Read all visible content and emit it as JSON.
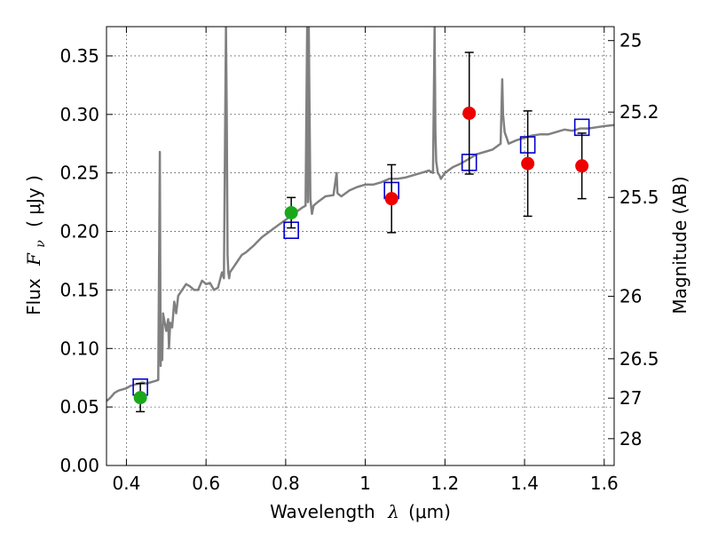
{
  "chart_data": {
    "type": "scatter",
    "title": "",
    "xlabel": {
      "text": "Wavelength",
      "symbol": "λ",
      "unit": "(μm)"
    },
    "ylabel": {
      "text": "Flux",
      "symbol": "F",
      "subscript": "ν",
      "unit": "( μJy )"
    },
    "y2label": "Magnitude (AB)",
    "xlim": [
      0.35,
      1.625
    ],
    "ylim": [
      0.0,
      0.375
    ],
    "grid": true,
    "colors": {
      "spectrum": "#808080",
      "green_points": "#1aa81a",
      "red_points": "#ee0000",
      "model_squares": "#0000cc",
      "error_bars": "#000000"
    },
    "x_ticks": [
      {
        "value": 0.4,
        "label": "0.4"
      },
      {
        "value": 0.6,
        "label": "0.6"
      },
      {
        "value": 0.8,
        "label": "0.8"
      },
      {
        "value": 1.0,
        "label": "1"
      },
      {
        "value": 1.2,
        "label": "1.2"
      },
      {
        "value": 1.4,
        "label": "1.4"
      },
      {
        "value": 1.6,
        "label": "1.6"
      }
    ],
    "y_ticks": [
      {
        "value": 0.0,
        "label": "0.00"
      },
      {
        "value": 0.05,
        "label": "0.05"
      },
      {
        "value": 0.1,
        "label": "0.10"
      },
      {
        "value": 0.15,
        "label": "0.15"
      },
      {
        "value": 0.2,
        "label": "0.20"
      },
      {
        "value": 0.25,
        "label": "0.25"
      },
      {
        "value": 0.3,
        "label": "0.30"
      },
      {
        "value": 0.35,
        "label": "0.35"
      }
    ],
    "y2_ticks": [
      {
        "value": 25,
        "label": "25"
      },
      {
        "value": 25.2,
        "label": "25.2"
      },
      {
        "value": 25.5,
        "label": "25.5"
      },
      {
        "value": 26,
        "label": "26"
      },
      {
        "value": 26.5,
        "label": "26.5"
      },
      {
        "value": 27,
        "label": "27"
      },
      {
        "value": 28,
        "label": "28"
      }
    ],
    "series": [
      {
        "kind": "points",
        "color": "green",
        "points": [
          {
            "x": 0.435,
            "y": 0.058,
            "yerr": 0.012
          },
          {
            "x": 0.814,
            "y": 0.216,
            "yerr": 0.013
          }
        ]
      },
      {
        "kind": "points",
        "color": "red",
        "points": [
          {
            "x": 1.066,
            "y": 0.228,
            "yerr": 0.029
          },
          {
            "x": 1.261,
            "y": 0.301,
            "yerr": 0.052
          },
          {
            "x": 1.408,
            "y": 0.258,
            "yerr": 0.045
          },
          {
            "x": 1.544,
            "y": 0.256,
            "yerr": 0.028
          }
        ]
      },
      {
        "kind": "squares",
        "color": "blue",
        "points": [
          {
            "x": 0.435,
            "y": 0.067
          },
          {
            "x": 0.814,
            "y": 0.201
          },
          {
            "x": 1.066,
            "y": 0.235
          },
          {
            "x": 1.261,
            "y": 0.259
          },
          {
            "x": 1.408,
            "y": 0.274
          },
          {
            "x": 1.544,
            "y": 0.289
          }
        ]
      },
      {
        "kind": "spectrum",
        "x": [
          0.35,
          0.36,
          0.37,
          0.38,
          0.39,
          0.4,
          0.41,
          0.42,
          0.43,
          0.44,
          0.45,
          0.46,
          0.47,
          0.48,
          0.484,
          0.486,
          0.488,
          0.49,
          0.492,
          0.5,
          0.505,
          0.507,
          0.51,
          0.515,
          0.52,
          0.525,
          0.53,
          0.54,
          0.55,
          0.56,
          0.57,
          0.58,
          0.59,
          0.6,
          0.61,
          0.62,
          0.63,
          0.64,
          0.645,
          0.65,
          0.652,
          0.654,
          0.656,
          0.658,
          0.66,
          0.67,
          0.68,
          0.69,
          0.7,
          0.72,
          0.74,
          0.76,
          0.78,
          0.8,
          0.82,
          0.84,
          0.85,
          0.854,
          0.856,
          0.858,
          0.862,
          0.866,
          0.87,
          0.88,
          0.9,
          0.92,
          0.928,
          0.93,
          0.932,
          0.94,
          0.96,
          0.98,
          1.0,
          1.02,
          1.04,
          1.06,
          1.08,
          1.1,
          1.12,
          1.14,
          1.16,
          1.17,
          1.174,
          1.176,
          1.178,
          1.182,
          1.186,
          1.19,
          1.2,
          1.22,
          1.24,
          1.26,
          1.28,
          1.3,
          1.32,
          1.34,
          1.344,
          1.346,
          1.35,
          1.36,
          1.38,
          1.4,
          1.42,
          1.44,
          1.46,
          1.48,
          1.5,
          1.52,
          1.54,
          1.56,
          1.58,
          1.6,
          1.625
        ],
        "y": [
          0.055,
          0.058,
          0.062,
          0.064,
          0.065,
          0.066,
          0.068,
          0.069,
          0.07,
          0.071,
          0.07,
          0.071,
          0.072,
          0.073,
          0.268,
          0.085,
          0.12,
          0.09,
          0.13,
          0.115,
          0.125,
          0.1,
          0.122,
          0.118,
          0.14,
          0.13,
          0.145,
          0.15,
          0.155,
          0.153,
          0.15,
          0.15,
          0.158,
          0.155,
          0.156,
          0.15,
          0.152,
          0.165,
          0.16,
          0.375,
          0.3,
          0.18,
          0.165,
          0.16,
          0.165,
          0.17,
          0.175,
          0.18,
          0.182,
          0.188,
          0.195,
          0.2,
          0.205,
          0.21,
          0.215,
          0.22,
          0.222,
          0.375,
          0.225,
          0.375,
          0.228,
          0.215,
          0.222,
          0.225,
          0.23,
          0.231,
          0.25,
          0.233,
          0.232,
          0.23,
          0.235,
          0.238,
          0.24,
          0.24,
          0.242,
          0.245,
          0.245,
          0.246,
          0.248,
          0.25,
          0.252,
          0.25,
          0.375,
          0.285,
          0.26,
          0.25,
          0.248,
          0.245,
          0.25,
          0.255,
          0.258,
          0.262,
          0.266,
          0.268,
          0.27,
          0.275,
          0.33,
          0.3,
          0.285,
          0.275,
          0.278,
          0.28,
          0.282,
          0.283,
          0.283,
          0.285,
          0.287,
          0.286,
          0.288,
          0.288,
          0.289,
          0.29,
          0.291
        ]
      }
    ]
  }
}
